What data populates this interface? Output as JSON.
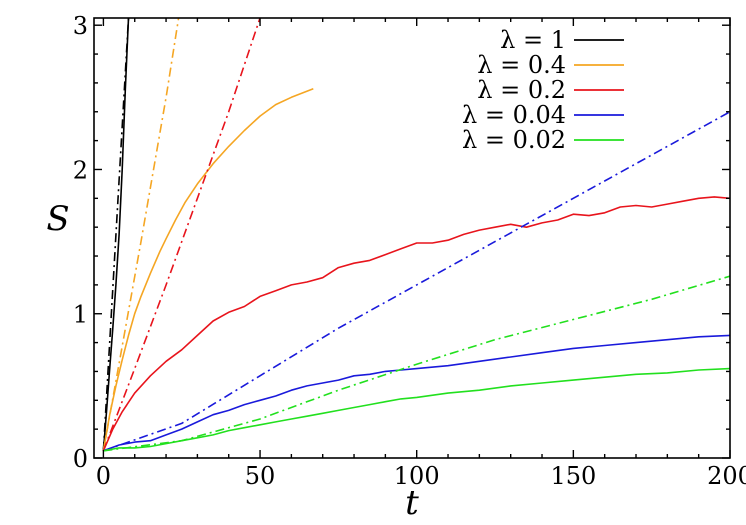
{
  "chart_data": {
    "type": "line",
    "xlabel": "t",
    "ylabel": "S",
    "xlim": [
      -3,
      200
    ],
    "ylim": [
      0,
      3.05
    ],
    "x_ticks": [
      "0",
      "50",
      "100",
      "150",
      "200"
    ],
    "y_ticks": [
      "0",
      "1",
      "2",
      "3"
    ],
    "x_tick_values": [
      0,
      50,
      100,
      150,
      200
    ],
    "y_tick_values": [
      0,
      1,
      2,
      3
    ],
    "grid": false,
    "legend_position": "top-right",
    "series": [
      {
        "name": "λ = 1",
        "color": "#000000",
        "style": "solid",
        "points": [
          [
            0,
            0.05
          ],
          [
            1,
            0.32
          ],
          [
            2,
            0.62
          ],
          [
            3,
            0.9
          ],
          [
            4,
            1.2
          ],
          [
            5,
            1.55
          ],
          [
            6,
            2.0
          ],
          [
            7,
            2.55
          ],
          [
            8,
            3.05
          ]
        ]
      },
      {
        "name": "",
        "color": "#000000",
        "style": "dashdot",
        "points": [
          [
            0,
            0.05
          ],
          [
            8,
            3.05
          ]
        ]
      },
      {
        "name": "λ = 0.4",
        "color": "#f5a623",
        "style": "solid",
        "points": [
          [
            0,
            0.05
          ],
          [
            2,
            0.3
          ],
          [
            4,
            0.5
          ],
          [
            6,
            0.68
          ],
          [
            8,
            0.85
          ],
          [
            10,
            1.0
          ],
          [
            12,
            1.12
          ],
          [
            15,
            1.28
          ],
          [
            18,
            1.43
          ],
          [
            20,
            1.52
          ],
          [
            23,
            1.65
          ],
          [
            26,
            1.77
          ],
          [
            30,
            1.9
          ],
          [
            35,
            2.04
          ],
          [
            40,
            2.16
          ],
          [
            45,
            2.27
          ],
          [
            50,
            2.37
          ],
          [
            55,
            2.45
          ],
          [
            60,
            2.5
          ],
          [
            67,
            2.56
          ]
        ]
      },
      {
        "name": "",
        "color": "#f5a623",
        "style": "dashdot",
        "points": [
          [
            0,
            0.05
          ],
          [
            12,
            1.5
          ],
          [
            20,
            2.5
          ],
          [
            24,
            3.05
          ]
        ]
      },
      {
        "name": "λ = 0.2",
        "color": "#e8141c",
        "style": "solid",
        "points": [
          [
            0,
            0.05
          ],
          [
            3,
            0.2
          ],
          [
            6,
            0.32
          ],
          [
            10,
            0.45
          ],
          [
            15,
            0.57
          ],
          [
            20,
            0.67
          ],
          [
            25,
            0.75
          ],
          [
            30,
            0.85
          ],
          [
            35,
            0.95
          ],
          [
            40,
            1.01
          ],
          [
            45,
            1.05
          ],
          [
            50,
            1.12
          ],
          [
            55,
            1.16
          ],
          [
            60,
            1.2
          ],
          [
            65,
            1.22
          ],
          [
            70,
            1.25
          ],
          [
            75,
            1.32
          ],
          [
            80,
            1.35
          ],
          [
            85,
            1.37
          ],
          [
            90,
            1.41
          ],
          [
            95,
            1.45
          ],
          [
            100,
            1.49
          ],
          [
            105,
            1.49
          ],
          [
            110,
            1.51
          ],
          [
            115,
            1.55
          ],
          [
            120,
            1.58
          ],
          [
            125,
            1.6
          ],
          [
            130,
            1.62
          ],
          [
            135,
            1.6
          ],
          [
            140,
            1.63
          ],
          [
            145,
            1.65
          ],
          [
            150,
            1.69
          ],
          [
            155,
            1.68
          ],
          [
            160,
            1.7
          ],
          [
            165,
            1.74
          ],
          [
            170,
            1.75
          ],
          [
            175,
            1.74
          ],
          [
            180,
            1.76
          ],
          [
            185,
            1.78
          ],
          [
            190,
            1.8
          ],
          [
            195,
            1.81
          ],
          [
            200,
            1.8
          ]
        ]
      },
      {
        "name": "",
        "color": "#e8141c",
        "style": "dashdot",
        "points": [
          [
            0,
            0.05
          ],
          [
            10,
            0.62
          ],
          [
            20,
            1.2
          ],
          [
            30,
            1.8
          ],
          [
            40,
            2.4
          ],
          [
            50,
            3.05
          ]
        ]
      },
      {
        "name": "λ = 0.04",
        "color": "#1a1adb",
        "style": "solid",
        "points": [
          [
            0,
            0.05
          ],
          [
            5,
            0.09
          ],
          [
            10,
            0.11
          ],
          [
            15,
            0.12
          ],
          [
            20,
            0.16
          ],
          [
            25,
            0.2
          ],
          [
            30,
            0.25
          ],
          [
            35,
            0.3
          ],
          [
            40,
            0.33
          ],
          [
            45,
            0.37
          ],
          [
            50,
            0.4
          ],
          [
            55,
            0.43
          ],
          [
            60,
            0.47
          ],
          [
            65,
            0.5
          ],
          [
            70,
            0.52
          ],
          [
            75,
            0.54
          ],
          [
            80,
            0.57
          ],
          [
            85,
            0.58
          ],
          [
            90,
            0.6
          ],
          [
            95,
            0.61
          ],
          [
            100,
            0.62
          ],
          [
            110,
            0.64
          ],
          [
            120,
            0.67
          ],
          [
            130,
            0.7
          ],
          [
            140,
            0.73
          ],
          [
            150,
            0.76
          ],
          [
            160,
            0.78
          ],
          [
            170,
            0.8
          ],
          [
            180,
            0.82
          ],
          [
            190,
            0.84
          ],
          [
            200,
            0.85
          ]
        ]
      },
      {
        "name": "",
        "color": "#1a1adb",
        "style": "dashdot",
        "points": [
          [
            0,
            0.05
          ],
          [
            25,
            0.24
          ],
          [
            50,
            0.57
          ],
          [
            75,
            0.9
          ],
          [
            100,
            1.2
          ],
          [
            125,
            1.5
          ],
          [
            150,
            1.8
          ],
          [
            175,
            2.1
          ],
          [
            200,
            2.4
          ]
        ]
      },
      {
        "name": "λ = 0.02",
        "color": "#22e01e",
        "style": "solid",
        "points": [
          [
            0,
            0.05
          ],
          [
            5,
            0.07
          ],
          [
            10,
            0.07
          ],
          [
            15,
            0.08
          ],
          [
            20,
            0.1
          ],
          [
            25,
            0.12
          ],
          [
            30,
            0.14
          ],
          [
            35,
            0.16
          ],
          [
            40,
            0.19
          ],
          [
            45,
            0.21
          ],
          [
            50,
            0.23
          ],
          [
            55,
            0.25
          ],
          [
            60,
            0.27
          ],
          [
            65,
            0.29
          ],
          [
            70,
            0.31
          ],
          [
            75,
            0.33
          ],
          [
            80,
            0.35
          ],
          [
            85,
            0.37
          ],
          [
            90,
            0.39
          ],
          [
            95,
            0.41
          ],
          [
            100,
            0.42
          ],
          [
            110,
            0.45
          ],
          [
            120,
            0.47
          ],
          [
            130,
            0.5
          ],
          [
            140,
            0.52
          ],
          [
            150,
            0.54
          ],
          [
            160,
            0.56
          ],
          [
            170,
            0.58
          ],
          [
            180,
            0.59
          ],
          [
            190,
            0.61
          ],
          [
            200,
            0.62
          ]
        ]
      },
      {
        "name": "",
        "color": "#22e01e",
        "style": "dashdot",
        "points": [
          [
            0,
            0.05
          ],
          [
            25,
            0.12
          ],
          [
            50,
            0.27
          ],
          [
            75,
            0.47
          ],
          [
            100,
            0.65
          ],
          [
            125,
            0.82
          ],
          [
            150,
            0.96
          ],
          [
            175,
            1.1
          ],
          [
            200,
            1.26
          ]
        ]
      }
    ]
  }
}
